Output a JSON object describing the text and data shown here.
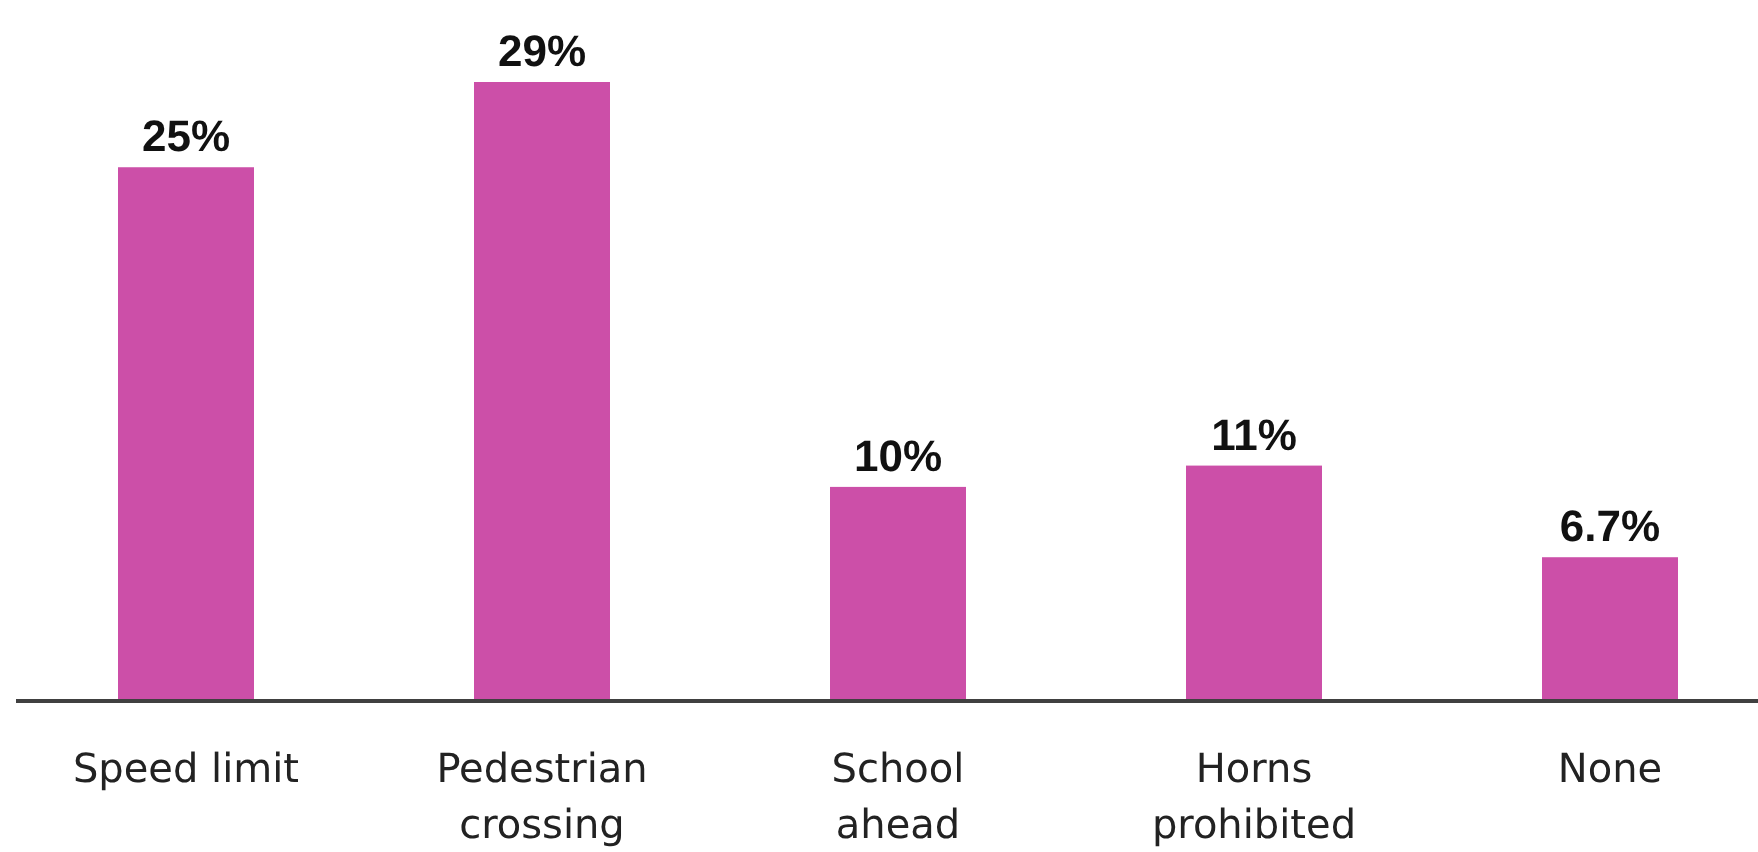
{
  "chart_data": {
    "type": "bar",
    "categories": [
      "Speed limit",
      "Pedestrian\ncrossing",
      "School\nahead",
      "Horns\nprohibited",
      "None"
    ],
    "values": [
      25,
      29,
      10,
      11,
      6.7
    ],
    "value_labels": [
      "25%",
      "29%",
      "10%",
      "11%",
      "6.7%"
    ],
    "color": "#cc4fa8"
  }
}
